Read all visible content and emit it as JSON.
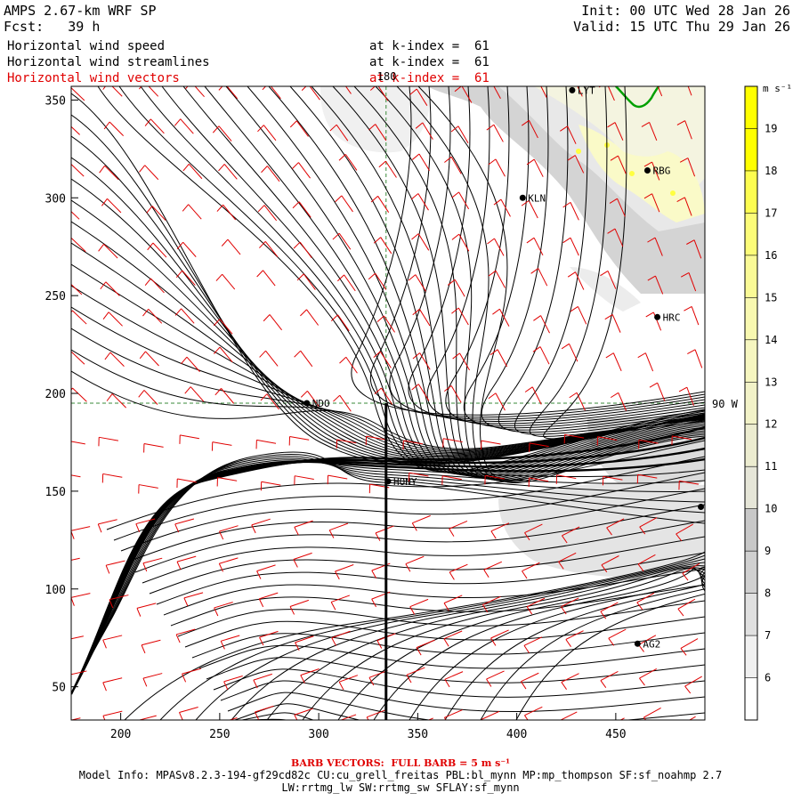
{
  "header": {
    "model_title": "AMPS 2.67-km WRF SP",
    "forecast": "Fcst:   39 h",
    "init": "Init: 00 UTC Wed 28 Jan 26",
    "valid": "Valid: 15 UTC Thu 29 Jan 26"
  },
  "fields": [
    {
      "name": "Horizontal wind speed",
      "level": "at k-index =  61",
      "color": "#000000"
    },
    {
      "name": "Horizontal wind streamlines",
      "level": "at k-index =  61",
      "color": "#000000"
    },
    {
      "name": "Horizontal wind vectors",
      "level": "at k-index =  61",
      "color": "#e00000"
    }
  ],
  "axes": {
    "x_ticks": [
      "200",
      "250",
      "300",
      "350",
      "400",
      "450"
    ],
    "y_ticks": [
      "350",
      "300",
      "250",
      "200",
      "150",
      "100",
      "50"
    ],
    "x_range": [
      175,
      495
    ],
    "y_range": [
      33,
      357
    ]
  },
  "grid_labels": {
    "lon_top": "180",
    "lon_right": "90 W"
  },
  "stations": [
    {
      "label": "LYT",
      "x": 428,
      "y": 355
    },
    {
      "label": "RBG",
      "x": 466,
      "y": 314
    },
    {
      "label": "KLN",
      "x": 403,
      "y": 300
    },
    {
      "label": "HRC",
      "x": 471,
      "y": 239
    },
    {
      "label": "NDO",
      "x": 294,
      "y": 195
    },
    {
      "label": "HONY",
      "x": 335,
      "y": 155
    },
    {
      "label": "",
      "x": 493,
      "y": 142
    },
    {
      "label": "AG2",
      "x": 461,
      "y": 72
    }
  ],
  "colorbar": {
    "unit": "m s⁻¹",
    "levels": [
      "6",
      "7",
      "8",
      "9",
      "10",
      "11",
      "12",
      "13",
      "14",
      "15",
      "16",
      "17",
      "18",
      "19"
    ],
    "colors": [
      "#ffffff",
      "#f0f0f0",
      "#e0e0e0",
      "#d0d0d0",
      "#c8c8c8",
      "#e6e6d8",
      "#ececd0",
      "#f2f2c8",
      "#f6f6c0",
      "#f8f8b0",
      "#fafa96",
      "#fcfc78",
      "#fdfd50",
      "#ffff00",
      "#ffff00"
    ]
  },
  "footer": {
    "barb_note": "BARB VECTORS:  FULL BARB = 5 m s⁻¹",
    "model_info": "Model Info: MPASv8.2.3-194-gf29cd82c CU:cu_grell_freitas PBL:bl_mynn MP:mp_thompson SF:sf_noahmp 2.7",
    "model_info2": "LW:rrtmg_lw SW:rrtmg_sw SFLAY:sf_mynn"
  }
}
